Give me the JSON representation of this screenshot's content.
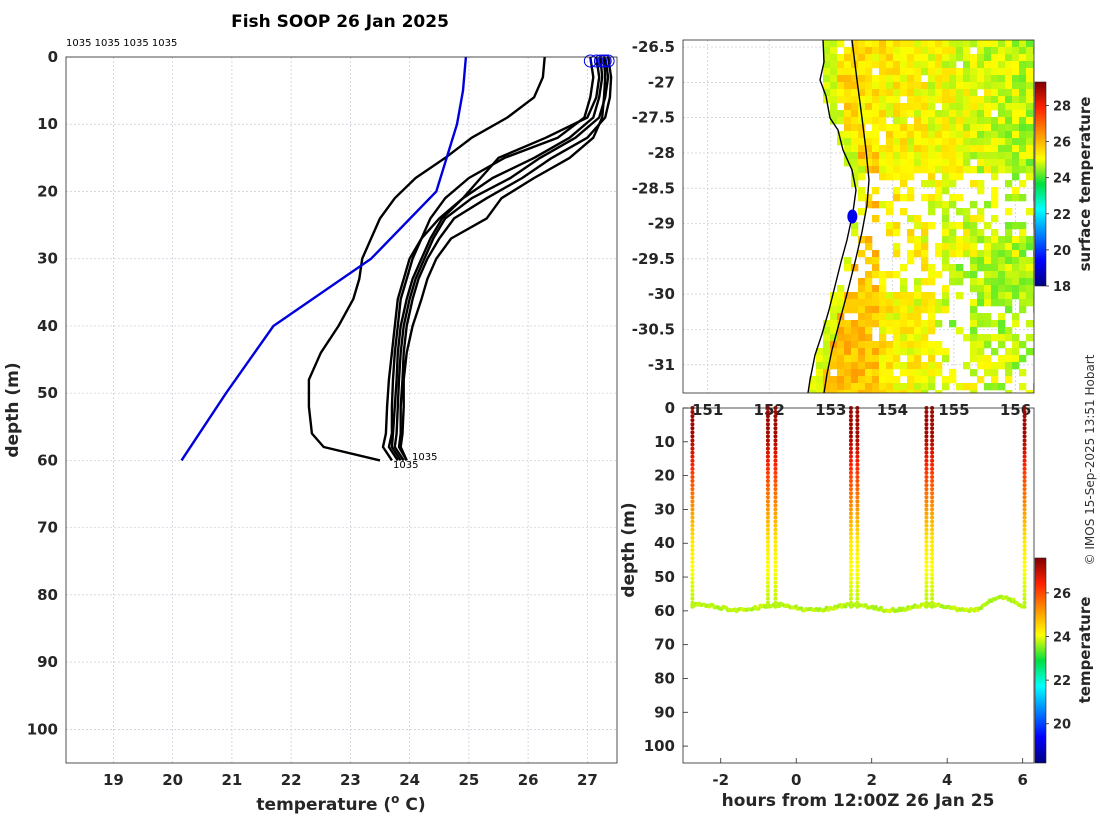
{
  "title": "Fish SOOP 26 Jan 2025",
  "credit": "© IMOS 15-Sep-2025 13:51 Hobart",
  "chart_data": [
    {
      "type": "line",
      "name": "temperature-depth-profiles",
      "xlabel": "temperature (°C)",
      "xlabel_parts": {
        "main": "temperature (",
        "sup": "o",
        "tail": " C)"
      },
      "ylabel": "depth (m)",
      "xlim": [
        18.2,
        27.5
      ],
      "ylim": [
        105,
        0
      ],
      "xticks": [
        "19",
        "20",
        "21",
        "22",
        "23",
        "24",
        "25",
        "26",
        "27"
      ],
      "yticks": [
        "0",
        "10",
        "20",
        "30",
        "40",
        "50",
        "60",
        "70",
        "80",
        "90",
        "100"
      ],
      "top_labels": "1035 1035 1035 1035",
      "bottom_label": "1035",
      "end_label": "1035",
      "climatology": {
        "name": "climatology",
        "color": "#0000dd",
        "temps": [
          24.95,
          24.9,
          24.8,
          24.45,
          23.35,
          21.7,
          20.9,
          20.15
        ],
        "depths": [
          0,
          5,
          10,
          20,
          30,
          40,
          50,
          60
        ]
      },
      "depths": [
        0,
        3,
        6,
        9,
        12,
        15,
        18,
        21,
        24,
        27,
        30,
        33,
        36,
        40,
        44,
        48,
        52,
        56,
        58,
        60
      ],
      "series": [
        {
          "name": "cast 1",
          "temps": [
            26.28,
            26.25,
            26.1,
            25.65,
            25.05,
            24.6,
            24.1,
            23.75,
            23.5,
            23.35,
            23.2,
            23.15,
            23.05,
            22.8,
            22.5,
            22.3,
            22.3,
            22.35,
            22.55,
            23.5
          ]
        },
        {
          "name": "cast 2",
          "temps": [
            27.05,
            27.1,
            27.05,
            26.95,
            26.5,
            25.6,
            25.0,
            24.6,
            24.35,
            24.2,
            24.0,
            23.9,
            23.8,
            23.75,
            23.7,
            23.65,
            23.62,
            23.6,
            23.55,
            23.7
          ]
        },
        {
          "name": "cast 3",
          "temps": [
            27.15,
            27.2,
            27.15,
            27.0,
            26.3,
            25.5,
            25.2,
            24.9,
            24.5,
            24.2,
            24.05,
            23.95,
            23.85,
            23.8,
            23.75,
            23.72,
            23.7,
            23.7,
            23.65,
            23.8
          ]
        },
        {
          "name": "cast 4",
          "temps": [
            27.22,
            27.25,
            27.2,
            27.1,
            26.7,
            26.1,
            25.4,
            24.9,
            24.55,
            24.35,
            24.2,
            24.05,
            23.95,
            23.85,
            23.8,
            23.78,
            23.75,
            23.72,
            23.7,
            23.85
          ]
        },
        {
          "name": "cast 5",
          "temps": [
            27.3,
            27.35,
            27.3,
            27.2,
            26.8,
            26.2,
            25.7,
            25.05,
            24.6,
            24.4,
            24.25,
            24.1,
            24.0,
            23.9,
            23.85,
            23.82,
            23.8,
            23.78,
            23.75,
            23.9
          ]
        },
        {
          "name": "cast 6",
          "temps": [
            27.35,
            27.4,
            27.38,
            27.3,
            27.0,
            26.4,
            25.9,
            25.3,
            24.75,
            24.5,
            24.3,
            24.15,
            24.05,
            23.95,
            23.9,
            23.88,
            23.85,
            23.85,
            23.82,
            23.95
          ]
        },
        {
          "name": "cast 7",
          "temps": [
            27.28,
            27.3,
            27.28,
            27.25,
            27.1,
            26.7,
            26.1,
            25.55,
            25.3,
            24.7,
            24.45,
            24.3,
            24.2,
            24.05,
            23.95,
            23.9,
            23.9,
            23.88,
            23.85,
            23.95
          ]
        }
      ]
    },
    {
      "type": "heatmap",
      "name": "surface-temperature-map",
      "xticks": [
        "151",
        "152",
        "153",
        "154",
        "155",
        "156"
      ],
      "xlim": [
        150.6,
        156.3
      ],
      "yticks": [
        "-26.5",
        "-27",
        "-27.5",
        "-28",
        "-28.5",
        "-29",
        "-29.5",
        "-30",
        "-30.5",
        "-31"
      ],
      "ylim": [
        -31.4,
        -26.4
      ],
      "colorbar_label": "surface temperature",
      "colorbar_ticks": [
        "18",
        "20",
        "22",
        "24",
        "26",
        "28"
      ],
      "colorbar_range": [
        18,
        29.3
      ],
      "ship_position": {
        "lon": 153.35,
        "lat": -28.9
      }
    },
    {
      "type": "scatter",
      "name": "depth-time-section",
      "xlabel": "hours from 12:00Z 26 Jan 25",
      "ylabel": "depth (m)",
      "xlim": [
        -3.0,
        6.3
      ],
      "ylim": [
        105,
        0
      ],
      "xticks": [
        "-2",
        "0",
        "2",
        "4",
        "6"
      ],
      "yticks": [
        "0",
        "10",
        "20",
        "30",
        "40",
        "50",
        "60",
        "70",
        "80",
        "90",
        "100"
      ],
      "colorbar_label": "temperature",
      "colorbar_ticks": [
        "20",
        "22",
        "24",
        "26"
      ],
      "colorbar_range": [
        18.2,
        27.6
      ],
      "cast_times": [
        -2.75,
        -0.75,
        -0.55,
        1.45,
        1.62,
        3.45,
        3.6,
        6.05
      ],
      "trace_depth": 59
    }
  ]
}
